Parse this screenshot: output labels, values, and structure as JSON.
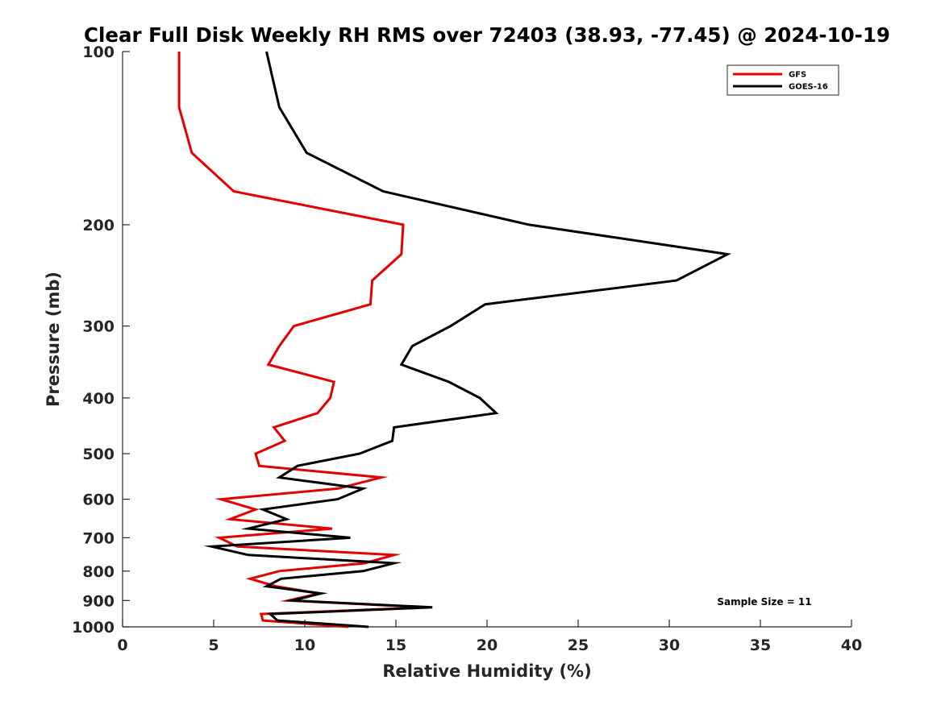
{
  "chart_data": {
    "type": "line",
    "title": "Clear Full Disk Weekly RH RMS over 72403 (38.93, -77.45) @ 2024-10-19",
    "xlabel": "Relative Humidity (%)",
    "ylabel": "Pressure (mb)",
    "xlim": [
      0,
      40
    ],
    "ylim": [
      100,
      1000
    ],
    "yscale": "log",
    "y_reversed": true,
    "x_ticks": [
      0,
      5,
      10,
      15,
      20,
      25,
      30,
      35,
      40
    ],
    "y_ticks": [
      100,
      200,
      300,
      400,
      500,
      600,
      700,
      800,
      900,
      1000
    ],
    "grid": false,
    "legend_position": "top-right",
    "annotation": "Sample Size = 11",
    "series": [
      {
        "name": "GFS",
        "color": "#e50000",
        "pressure": [
          100,
          125,
          150,
          175,
          200,
          225,
          250,
          275,
          300,
          325,
          350,
          375,
          400,
          425,
          450,
          475,
          500,
          525,
          550,
          575,
          600,
          625,
          650,
          675,
          700,
          725,
          750,
          775,
          800,
          825,
          850,
          875,
          900,
          925,
          950,
          975,
          1000
        ],
        "values": [
          3.1,
          3.1,
          3.8,
          6.1,
          15.4,
          15.3,
          13.7,
          13.6,
          9.4,
          8.6,
          8.0,
          11.6,
          11.4,
          10.7,
          8.3,
          8.9,
          7.3,
          7.5,
          14.2,
          11.8,
          5.4,
          7.3,
          5.9,
          11.5,
          5.3,
          6.3,
          14.9,
          13.3,
          8.6,
          7.0,
          8.4,
          10.8,
          9.1,
          16.7,
          7.6,
          7.7,
          12.4
        ]
      },
      {
        "name": "GOES-16",
        "color": "#000000",
        "pressure": [
          100,
          125,
          150,
          175,
          200,
          225,
          250,
          275,
          300,
          325,
          350,
          375,
          400,
          425,
          450,
          475,
          500,
          525,
          550,
          575,
          600,
          625,
          650,
          675,
          700,
          725,
          750,
          775,
          800,
          825,
          850,
          875,
          900,
          925,
          950,
          975,
          1000
        ],
        "values": [
          7.9,
          8.6,
          10.1,
          14.3,
          22.3,
          33.2,
          30.4,
          19.9,
          18.0,
          15.9,
          15.3,
          17.9,
          19.6,
          20.5,
          14.9,
          14.8,
          13.0,
          9.6,
          8.6,
          13.2,
          11.8,
          7.7,
          9.0,
          6.9,
          12.5,
          4.9,
          6.9,
          14.9,
          13.2,
          8.7,
          7.9,
          10.9,
          9.3,
          17.0,
          8.1,
          8.5,
          13.5
        ]
      }
    ]
  }
}
